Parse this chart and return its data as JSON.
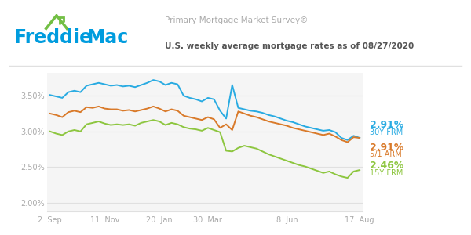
{
  "title1": "Primary Mortgage Market Survey®",
  "title2": "U.S. weekly average mortgage rates as of 08/27/2020",
  "x_labels": [
    "2. Sep",
    "11. Nov",
    "20. Jan",
    "30. Mar",
    "8. Jun",
    "17. Aug"
  ],
  "y_ticks": [
    2.0,
    2.5,
    3.0,
    3.5
  ],
  "y_tick_labels": [
    "2.00%",
    "2.50%",
    "3.00%",
    "3.50%"
  ],
  "ylim": [
    1.88,
    3.82
  ],
  "color_30y": "#29ABE2",
  "color_5y": "#D97A2A",
  "color_15y": "#8DC63F",
  "bg_color": "#F5F5F5",
  "freddie_blue": "#009CDE",
  "freddie_green": "#72BF44",
  "n_points": 52,
  "x_tick_pos": [
    0,
    9,
    18,
    26,
    39,
    51
  ],
  "30y_frm": [
    3.51,
    3.49,
    3.47,
    3.55,
    3.57,
    3.55,
    3.64,
    3.66,
    3.68,
    3.66,
    3.64,
    3.65,
    3.63,
    3.64,
    3.62,
    3.65,
    3.68,
    3.72,
    3.7,
    3.65,
    3.68,
    3.66,
    3.5,
    3.47,
    3.45,
    3.42,
    3.47,
    3.45,
    3.29,
    3.18,
    3.65,
    3.33,
    3.31,
    3.29,
    3.28,
    3.26,
    3.23,
    3.21,
    3.18,
    3.15,
    3.13,
    3.1,
    3.07,
    3.05,
    3.03,
    3.01,
    3.02,
    2.99,
    2.91,
    2.88,
    2.94,
    2.91
  ],
  "5y_arm": [
    3.25,
    3.23,
    3.2,
    3.27,
    3.29,
    3.27,
    3.34,
    3.33,
    3.35,
    3.32,
    3.31,
    3.31,
    3.29,
    3.3,
    3.28,
    3.3,
    3.32,
    3.35,
    3.32,
    3.28,
    3.31,
    3.29,
    3.22,
    3.2,
    3.18,
    3.16,
    3.2,
    3.17,
    3.05,
    3.1,
    3.02,
    3.28,
    3.25,
    3.22,
    3.2,
    3.17,
    3.14,
    3.12,
    3.1,
    3.08,
    3.05,
    3.03,
    3.01,
    2.99,
    2.97,
    2.95,
    2.97,
    2.93,
    2.88,
    2.85,
    2.92,
    2.91
  ],
  "15y_frm": [
    3.0,
    2.97,
    2.95,
    3.0,
    3.02,
    3.0,
    3.1,
    3.12,
    3.14,
    3.11,
    3.09,
    3.1,
    3.09,
    3.1,
    3.08,
    3.12,
    3.14,
    3.16,
    3.14,
    3.09,
    3.12,
    3.1,
    3.06,
    3.04,
    3.03,
    3.01,
    3.05,
    3.02,
    2.99,
    2.73,
    2.72,
    2.77,
    2.8,
    2.78,
    2.76,
    2.72,
    2.68,
    2.65,
    2.62,
    2.59,
    2.56,
    2.53,
    2.51,
    2.48,
    2.45,
    2.42,
    2.44,
    2.4,
    2.37,
    2.35,
    2.44,
    2.46
  ],
  "val_30y": "2.91%",
  "lbl_30y": "30Y FRM",
  "val_5y": "2.91%",
  "lbl_5y": "5/1 ARM",
  "val_15y": "2.46%",
  "lbl_15y": "15Y FRM",
  "header_line_color": "#E0E0E0",
  "grid_color": "#E0E0E0",
  "tick_color": "#AAAAAA"
}
